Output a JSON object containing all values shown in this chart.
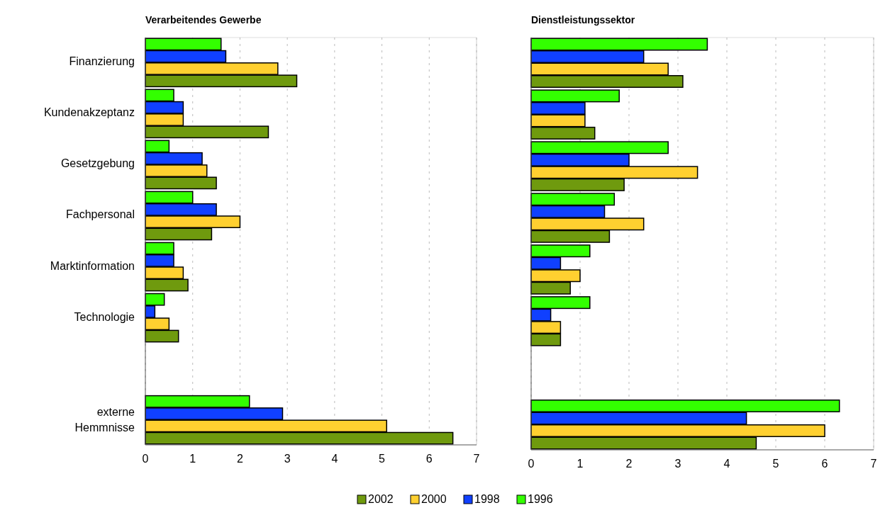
{
  "chart_data": [
    {
      "type": "bar",
      "orientation": "horizontal",
      "title": "Verarbeitendes Gewerbe",
      "categories": [
        "Finanzierung",
        "Kundenakzeptanz",
        "Gesetzgebung",
        "Fachpersonal",
        "Marktinformation",
        "Technologie",
        null,
        "externe Hemmnisse"
      ],
      "xlim": [
        0,
        7
      ],
      "xticks": [
        0,
        1,
        2,
        3,
        4,
        5,
        6,
        7
      ],
      "grid": "x",
      "legend": "bottom",
      "series": [
        {
          "name": "2002",
          "color": "#6f9a0e",
          "values": [
            3.2,
            2.6,
            1.5,
            1.4,
            0.9,
            0.7,
            null,
            6.5
          ]
        },
        {
          "name": "2000",
          "color": "#ffd030",
          "values": [
            2.8,
            0.8,
            1.3,
            2.0,
            0.8,
            0.5,
            null,
            5.1
          ]
        },
        {
          "name": "1998",
          "color": "#1040ff",
          "values": [
            1.7,
            0.8,
            1.2,
            1.5,
            0.6,
            0.2,
            null,
            2.9
          ]
        },
        {
          "name": "1996",
          "color": "#33ff00",
          "values": [
            1.6,
            0.6,
            0.5,
            1.0,
            0.6,
            0.4,
            null,
            2.2
          ]
        }
      ]
    },
    {
      "type": "bar",
      "orientation": "horizontal",
      "title": "Dienstleistungssektor",
      "categories": [
        null,
        null,
        null,
        null,
        null,
        null,
        null,
        null
      ],
      "xlim": [
        0,
        7
      ],
      "xticks": [
        0,
        1,
        2,
        3,
        4,
        5,
        6,
        7
      ],
      "grid": "x",
      "series": [
        {
          "color": "#6f9a0e",
          "values": [
            3.1,
            1.3,
            1.9,
            1.6,
            0.8,
            0.6,
            null,
            4.6
          ]
        },
        {
          "color": "#ffd030",
          "values": [
            2.8,
            1.1,
            3.4,
            2.3,
            1.0,
            0.6,
            null,
            6.0
          ]
        },
        {
          "color": "#1040ff",
          "values": [
            2.3,
            1.1,
            2.0,
            1.5,
            0.6,
            0.4,
            null,
            4.4
          ]
        },
        {
          "color": "#33ff00",
          "values": [
            3.6,
            1.8,
            2.8,
            1.7,
            1.2,
            1.2,
            null,
            6.3
          ]
        }
      ]
    }
  ]
}
